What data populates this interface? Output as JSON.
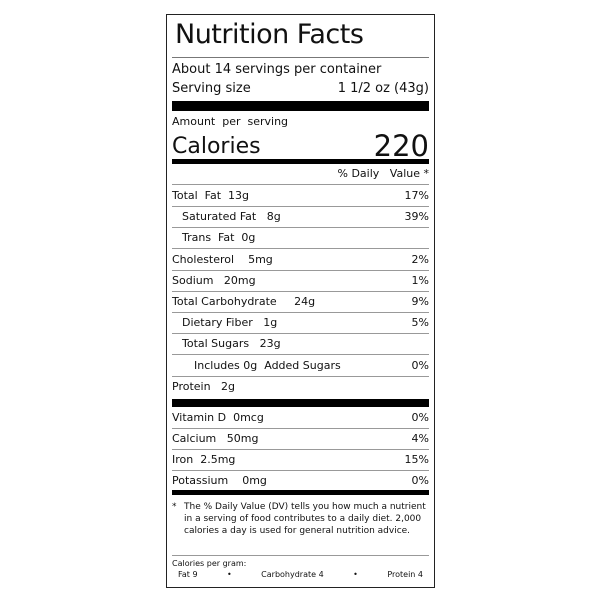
{
  "title": "Nutrition Facts",
  "servings": "About 14 servings per container",
  "serving_size_label": "Serving size",
  "serving_size_value": "1 1/2 oz (43g)",
  "amount_per_serving": "Amount  per  serving",
  "calories_label": "Calories",
  "calories_value": "220",
  "dv_header": "% Daily   Value *",
  "nutrients": [
    {
      "label": "Total  Fat  13g",
      "dv": "17%"
    },
    {
      "label": "Saturated Fat   8g",
      "dv": "39%"
    },
    {
      "label": "Trans  Fat  0g",
      "dv": ""
    },
    {
      "label": "Cholesterol    5mg",
      "dv": "2%"
    },
    {
      "label": "Sodium   20mg",
      "dv": "1%"
    },
    {
      "label": "Total Carbohydrate     24g",
      "dv": "9%"
    },
    {
      "label": "Dietary Fiber   1g",
      "dv": "5%"
    },
    {
      "label": "Total Sugars   23g",
      "dv": ""
    },
    {
      "label": "Includes 0g  Added Sugars",
      "dv": "0%"
    },
    {
      "label": "Protein   2g",
      "dv": ""
    }
  ],
  "vitamins": [
    {
      "label": "Vitamin D  0mcg",
      "dv": "0%"
    },
    {
      "label": "Calcium   50mg",
      "dv": "4%"
    },
    {
      "label": "Iron  2.5mg",
      "dv": "15%"
    },
    {
      "label": "Potassium    0mg",
      "dv": "0%"
    }
  ],
  "footnote_marker": "*",
  "footnote": "The % Daily    Value (DV) tells you how much a nutrient in a serving of food contributes to a daily diet. 2,000 calories a day is used for general nutrition advice.",
  "calories_per_gram": "Calories per gram:",
  "cpg": {
    "fat": "Fat 9",
    "carb": "Carbohydrate 4",
    "protein": "Protein 4",
    "sep": "•"
  }
}
